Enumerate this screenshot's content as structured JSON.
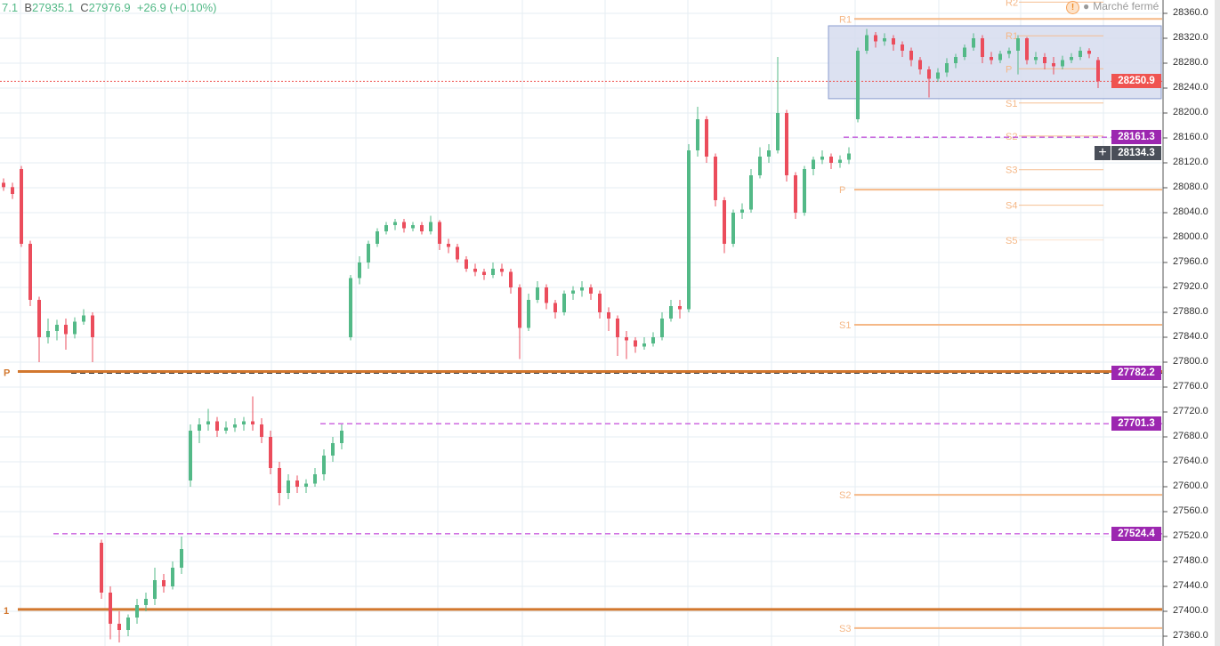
{
  "header": {
    "partial": "7.1",
    "b_label": "B",
    "b_value": "27935.1",
    "c_label": "C",
    "c_value": "27976.9",
    "change": "+26.9 (+0.10%)"
  },
  "status": {
    "icon": "warning-icon",
    "text": "Marché fermé"
  },
  "colors": {
    "up": "#53b987",
    "down": "#eb4d5c",
    "pivot": "#f5b887",
    "pivot_strong": "#d2772e",
    "magenta": "#b51ed0",
    "last": "#ef5350",
    "tag_purple": "#9c27b0",
    "box": "#d6dcef"
  },
  "crosshair": {
    "value": "28134.3",
    "icon": "plus-icon"
  },
  "price_tags": [
    {
      "value": "28250.9",
      "color": "#ef5350",
      "price": 28250.9
    },
    {
      "value": "28161.3",
      "color": "#9c27b0",
      "price": 28161.3
    },
    {
      "value": "27782.2",
      "color": "#9c27b0",
      "price": 27782.2
    },
    {
      "value": "27701.3",
      "color": "#9c27b0",
      "price": 27701.3
    },
    {
      "value": "27524.4",
      "color": "#9c27b0",
      "price": 27524.4
    }
  ],
  "chart_data": {
    "type": "candlestick",
    "ylim": [
      27345,
      28385
    ],
    "yticks": [
      "28360.0",
      "28320.0",
      "28280.0",
      "28240.0",
      "28200.0",
      "28160.0",
      "28120.0",
      "28080.0",
      "28040.0",
      "28000.0",
      "27960.0",
      "27920.0",
      "27880.0",
      "27840.0",
      "27800.0",
      "27760.0",
      "27720.0",
      "27680.0",
      "27640.0",
      "27600.0",
      "27560.0",
      "27520.0",
      "27480.0",
      "27440.0",
      "27400.0",
      "27360.0"
    ],
    "grid": true,
    "candles": [
      [
        28088,
        28095,
        28075,
        28081
      ],
      [
        28081,
        28088,
        28062,
        28070
      ],
      [
        28110,
        28115,
        27985,
        27990
      ],
      [
        27990,
        27995,
        27890,
        27900
      ],
      [
        27900,
        27905,
        27800,
        27840
      ],
      [
        27840,
        27870,
        27830,
        27850
      ],
      [
        27850,
        27868,
        27835,
        27860
      ],
      [
        27860,
        27870,
        27820,
        27845
      ],
      [
        27845,
        27872,
        27838,
        27865
      ],
      [
        27865,
        27885,
        27860,
        27875
      ],
      [
        27875,
        27880,
        27800,
        27840
      ],
      [
        27510,
        27515,
        27420,
        27430
      ],
      [
        27430,
        27440,
        27355,
        27380
      ],
      [
        27380,
        27400,
        27350,
        27370
      ],
      [
        27370,
        27395,
        27360,
        27390
      ],
      [
        27390,
        27420,
        27380,
        27410
      ],
      [
        27410,
        27430,
        27400,
        27420
      ],
      [
        27420,
        27470,
        27410,
        27450
      ],
      [
        27450,
        27460,
        27430,
        27440
      ],
      [
        27440,
        27480,
        27435,
        27470
      ],
      [
        27470,
        27520,
        27460,
        27500
      ],
      [
        27610,
        27700,
        27600,
        27690
      ],
      [
        27690,
        27710,
        27670,
        27700
      ],
      [
        27700,
        27725,
        27690,
        27705
      ],
      [
        27705,
        27712,
        27680,
        27690
      ],
      [
        27690,
        27705,
        27685,
        27695
      ],
      [
        27695,
        27710,
        27688,
        27700
      ],
      [
        27700,
        27712,
        27690,
        27705
      ],
      [
        27705,
        27745,
        27690,
        27700
      ],
      [
        27700,
        27710,
        27670,
        27680
      ],
      [
        27680,
        27690,
        27620,
        27630
      ],
      [
        27630,
        27640,
        27570,
        27590
      ],
      [
        27590,
        27620,
        27580,
        27610
      ],
      [
        27610,
        27618,
        27590,
        27600
      ],
      [
        27600,
        27612,
        27590,
        27605
      ],
      [
        27605,
        27630,
        27600,
        27620
      ],
      [
        27620,
        27660,
        27610,
        27650
      ],
      [
        27650,
        27680,
        27640,
        27670
      ],
      [
        27670,
        27700,
        27660,
        27690
      ],
      [
        27840,
        27940,
        27835,
        27935
      ],
      [
        27935,
        27970,
        27925,
        27960
      ],
      [
        27960,
        27995,
        27950,
        27990
      ],
      [
        27990,
        28015,
        27985,
        28010
      ],
      [
        28010,
        28025,
        28005,
        28020
      ],
      [
        28020,
        28030,
        28012,
        28025
      ],
      [
        28025,
        28030,
        28008,
        28015
      ],
      [
        28015,
        28025,
        28010,
        28020
      ],
      [
        28020,
        28025,
        28005,
        28010
      ],
      [
        28010,
        28035,
        28005,
        28025
      ],
      [
        28025,
        28028,
        27980,
        27990
      ],
      [
        27990,
        27998,
        27975,
        27985
      ],
      [
        27985,
        27990,
        27960,
        27965
      ],
      [
        27965,
        27970,
        27945,
        27950
      ],
      [
        27950,
        27958,
        27938,
        27945
      ],
      [
        27945,
        27950,
        27932,
        27940
      ],
      [
        27940,
        27960,
        27935,
        27950
      ],
      [
        27950,
        27958,
        27938,
        27945
      ],
      [
        27945,
        27950,
        27910,
        27920
      ],
      [
        27920,
        27925,
        27805,
        27855
      ],
      [
        27855,
        27910,
        27850,
        27900
      ],
      [
        27900,
        27930,
        27895,
        27920
      ],
      [
        27920,
        27925,
        27885,
        27895
      ],
      [
        27895,
        27900,
        27870,
        27880
      ],
      [
        27880,
        27915,
        27875,
        27910
      ],
      [
        27910,
        27922,
        27900,
        27915
      ],
      [
        27915,
        27930,
        27905,
        27920
      ],
      [
        27920,
        27925,
        27900,
        27910
      ],
      [
        27910,
        27915,
        27870,
        27880
      ],
      [
        27880,
        27888,
        27850,
        27870
      ],
      [
        27870,
        27875,
        27810,
        27840
      ],
      [
        27840,
        27850,
        27805,
        27835
      ],
      [
        27835,
        27840,
        27815,
        27825
      ],
      [
        27825,
        27840,
        27820,
        27830
      ],
      [
        27830,
        27848,
        27825,
        27840
      ],
      [
        27840,
        27880,
        27835,
        27870
      ],
      [
        27870,
        27900,
        27865,
        27890
      ],
      [
        27890,
        27900,
        27870,
        27885
      ],
      [
        27885,
        28150,
        27880,
        28140
      ],
      [
        28140,
        28210,
        28130,
        28190
      ],
      [
        28190,
        28195,
        28120,
        28130
      ],
      [
        28130,
        28135,
        28050,
        28060
      ],
      [
        28060,
        28065,
        27975,
        27990
      ],
      [
        27990,
        28045,
        27985,
        28040
      ],
      [
        28040,
        28055,
        28030,
        28045
      ],
      [
        28045,
        28110,
        28040,
        28100
      ],
      [
        28100,
        28145,
        28095,
        28130
      ],
      [
        28130,
        28150,
        28120,
        28140
      ],
      [
        28140,
        28290,
        28135,
        28200
      ],
      [
        28200,
        28205,
        28090,
        28100
      ],
      [
        28100,
        28105,
        28030,
        28040
      ],
      [
        28040,
        28115,
        28035,
        28110
      ],
      [
        28110,
        28130,
        28100,
        28125
      ],
      [
        28125,
        28140,
        28118,
        28130
      ],
      [
        28130,
        28135,
        28110,
        28120
      ],
      [
        28120,
        28132,
        28112,
        28125
      ],
      [
        28125,
        28145,
        28118,
        28135
      ],
      [
        28190,
        28305,
        28185,
        28300
      ],
      [
        28300,
        28335,
        28295,
        28325
      ],
      [
        28325,
        28330,
        28305,
        28315
      ],
      [
        28315,
        28328,
        28308,
        28320
      ],
      [
        28320,
        28325,
        28300,
        28310
      ],
      [
        28310,
        28315,
        28290,
        28300
      ],
      [
        28300,
        28305,
        28275,
        28285
      ],
      [
        28285,
        28290,
        28262,
        28270
      ],
      [
        28270,
        28275,
        28225,
        28255
      ],
      [
        28255,
        28272,
        28250,
        28265
      ],
      [
        28265,
        28288,
        28258,
        28280
      ],
      [
        28280,
        28295,
        28272,
        28290
      ],
      [
        28290,
        28310,
        28285,
        28305
      ],
      [
        28305,
        28328,
        28300,
        28320
      ],
      [
        28320,
        28325,
        28280,
        28290
      ],
      [
        28290,
        28298,
        28278,
        28285
      ],
      [
        28285,
        28300,
        28280,
        28295
      ],
      [
        28295,
        28305,
        28288,
        28300
      ],
      [
        28300,
        28325,
        28262,
        28320
      ],
      [
        28320,
        28322,
        28278,
        28285
      ],
      [
        28285,
        28298,
        28278,
        28290
      ],
      [
        28290,
        28296,
        28270,
        28280
      ],
      [
        28280,
        28290,
        28262,
        28275
      ],
      [
        28275,
        28292,
        28270,
        28285
      ],
      [
        28285,
        28296,
        28280,
        28290
      ],
      [
        28290,
        28306,
        28285,
        28300
      ],
      [
        28300,
        28304,
        28288,
        28295
      ],
      [
        28285,
        28290,
        28240,
        28250.9
      ]
    ],
    "session_breaks": [
      11,
      21,
      39,
      77,
      96
    ],
    "levels": [
      {
        "label": "P",
        "price": 27785,
        "style": "thick",
        "color": "#d2772e"
      },
      {
        "label": "1",
        "price": 27403,
        "style": "thick",
        "color": "#d2772e"
      },
      {
        "price": 28250.9,
        "style": "dotted",
        "color": "#ef5350"
      },
      {
        "price": 27782.2,
        "style": "dashed",
        "color": "#333333"
      },
      {
        "price": 28161.3,
        "style": "dashed",
        "color": "#b51ed0"
      },
      {
        "price": 27701.3,
        "style": "dashed",
        "color": "#b51ed0"
      },
      {
        "price": 27524.4,
        "style": "dashed",
        "color": "#b51ed0"
      }
    ],
    "pivots_daily": [
      {
        "label": "R1",
        "price": 28351
      },
      {
        "label": "P",
        "price": 28077
      },
      {
        "label": "S1",
        "price": 27860
      },
      {
        "label": "S2",
        "price": 27587
      },
      {
        "label": "S3",
        "price": 27373
      }
    ],
    "pivots_session": [
      {
        "label": "R2",
        "price": 28378
      },
      {
        "label": "R1",
        "price": 28324
      },
      {
        "label": "P",
        "price": 28271
      },
      {
        "label": "S1",
        "price": 28216
      },
      {
        "label": "S2",
        "price": 28163
      },
      {
        "label": "S3",
        "price": 28109
      },
      {
        "label": "S4",
        "price": 28052
      },
      {
        "label": "S5",
        "price": 27996
      }
    ],
    "range_box": {
      "top": 28340,
      "bottom": 28223
    }
  }
}
